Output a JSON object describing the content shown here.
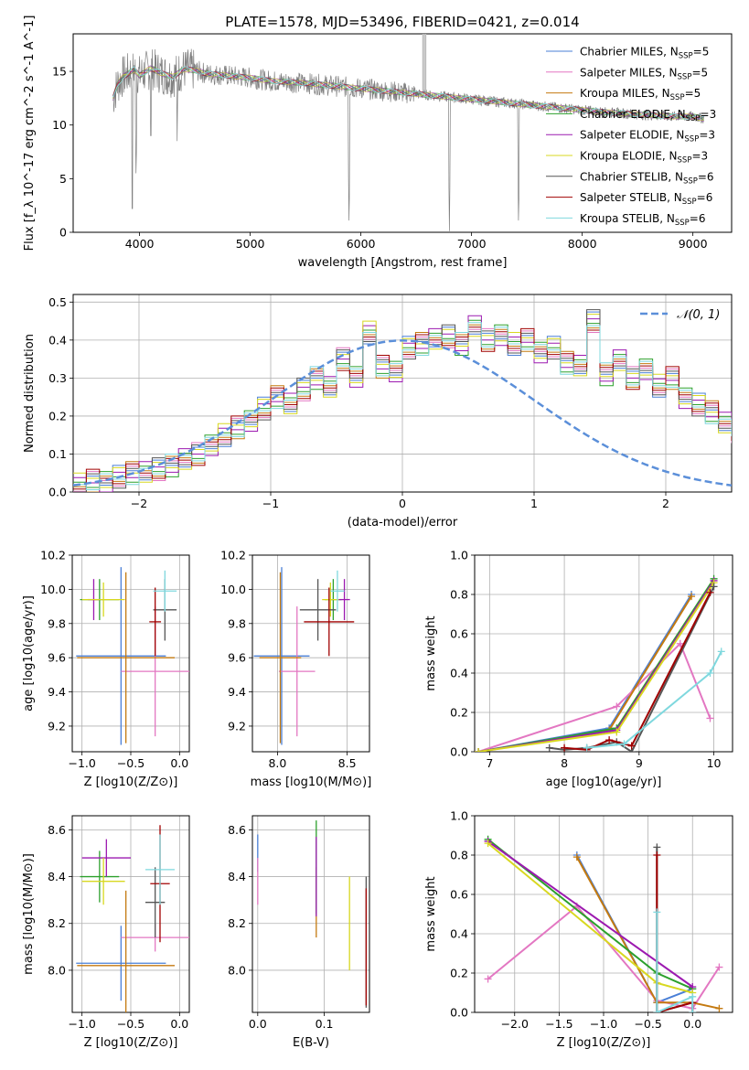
{
  "figure": {
    "title": "PLATE=1578, MJD=53496, FIBERID=0421, z=0.014"
  },
  "series_styles": [
    {
      "name": "Chabrier MILES",
      "nssp": "5",
      "color": "#4a7fd6"
    },
    {
      "name": "Salpeter MILES",
      "nssp": "5",
      "color": "#e377c2"
    },
    {
      "name": "Kroupa MILES",
      "nssp": "5",
      "color": "#c47a10"
    },
    {
      "name": "Chabrier ELODIE",
      "nssp": "3",
      "color": "#2ca02c"
    },
    {
      "name": "Salpeter ELODIE",
      "nssp": "3",
      "color": "#9c1ab0"
    },
    {
      "name": "Kroupa ELODIE",
      "nssp": "3",
      "color": "#d8d820"
    },
    {
      "name": "Chabrier STELIB",
      "nssp": "6",
      "color": "#555555"
    },
    {
      "name": "Salpeter STELIB",
      "nssp": "6",
      "color": "#a00000"
    },
    {
      "name": "Kroupa STELIB",
      "nssp": "6",
      "color": "#7fd8de"
    }
  ],
  "chart_data": [
    {
      "id": "spectrum",
      "type": "line",
      "xlabel": "wavelength [Angstrom, rest frame]",
      "ylabel": "Flux [f_λ 10^-17 erg cm^-2 s^-1 A^-1]",
      "xlim": [
        3400,
        9350
      ],
      "ylim": [
        0,
        18.5
      ],
      "xticks": [
        4000,
        5000,
        6000,
        7000,
        8000,
        9000
      ],
      "yticks": [
        0,
        5,
        10,
        15
      ],
      "legend": "top-right",
      "data_color": "#808080",
      "continuum_x": [
        3760,
        3800,
        3850,
        3900,
        3950,
        4000,
        4100,
        4200,
        4300,
        4400,
        4500,
        4600,
        4800,
        5000,
        5200,
        5500,
        5800,
        6000,
        6200,
        6500,
        6800,
        7000,
        7200,
        7500,
        7800,
        8000,
        8200,
        8500,
        8800,
        9000,
        9100
      ],
      "continuum_y": [
        12.5,
        13.8,
        14.5,
        14.8,
        15.2,
        14.6,
        15.3,
        14.8,
        14.5,
        15.2,
        15.1,
        14.8,
        14.6,
        14.4,
        14.1,
        13.9,
        13.6,
        13.4,
        13.2,
        12.9,
        12.6,
        12.4,
        12.2,
        11.9,
        11.6,
        11.4,
        11.2,
        11.0,
        10.8,
        10.8,
        10.6
      ],
      "absorption_dips": [
        {
          "x": 3934,
          "y": 0.2
        },
        {
          "x": 3969,
          "y": 4.5
        },
        {
          "x": 4102,
          "y": 7.0
        },
        {
          "x": 4340,
          "y": 8.5
        },
        {
          "x": 5893,
          "y": 0.1
        },
        {
          "x": 6800,
          "y": 0.1
        },
        {
          "x": 7425,
          "y": 0.1
        }
      ],
      "emission_spikes": [
        {
          "x": 6563,
          "y": 18.5
        },
        {
          "x": 6583,
          "y": 18.5
        }
      ]
    },
    {
      "id": "residual_hist",
      "type": "line",
      "xlabel": "(data-model)/error",
      "ylabel": "Normed distribution",
      "xlim": [
        -2.5,
        2.5
      ],
      "ylim": [
        0,
        0.52
      ],
      "xticks": [
        -2,
        -1,
        0,
        1,
        2
      ],
      "xtick_labels": [
        "−2",
        "−1",
        "0",
        "1",
        "2"
      ],
      "yticks": [
        0.0,
        0.1,
        0.2,
        0.3,
        0.4,
        0.5
      ],
      "ytick_labels": [
        "0.0",
        "0.1",
        "0.2",
        "0.3",
        "0.4",
        "0.5"
      ],
      "legend": "top-right",
      "curve_label": "𝒩(0, 1)",
      "curve_color": "#5b8fd9",
      "bins_start": -2.5,
      "bin_width": 0.1,
      "histogram": [
        0.02,
        0.03,
        0.03,
        0.04,
        0.05,
        0.05,
        0.06,
        0.07,
        0.09,
        0.1,
        0.12,
        0.15,
        0.17,
        0.19,
        0.22,
        0.25,
        0.23,
        0.27,
        0.3,
        0.28,
        0.35,
        0.3,
        0.42,
        0.33,
        0.32,
        0.38,
        0.39,
        0.4,
        0.41,
        0.39,
        0.44,
        0.4,
        0.41,
        0.39,
        0.4,
        0.37,
        0.38,
        0.34,
        0.33,
        0.45,
        0.31,
        0.35,
        0.3,
        0.32,
        0.28,
        0.3,
        0.25,
        0.23,
        0.21,
        0.18,
        0.16,
        0.14,
        0.12,
        0.1,
        0.09,
        0.08,
        0.06,
        0.05,
        0.04,
        0.03
      ]
    },
    {
      "id": "age_vs_Z",
      "type": "scatter",
      "xlabel": "Z [log10(Z/Z⊙)]",
      "ylabel": "age [log10(age/yr)]",
      "xlim": [
        -1.1,
        0.1
      ],
      "ylim": [
        9.05,
        10.2
      ],
      "xticks": [
        -1.0,
        -0.5,
        0.0
      ],
      "xtick_labels": [
        "−1.0",
        "−0.5",
        "0.0"
      ],
      "yticks": [
        9.2,
        9.4,
        9.6,
        9.8,
        10.0,
        10.2
      ],
      "ytick_labels": [
        "9.2",
        "9.4",
        "9.6",
        "9.8",
        "10.0",
        "10.2"
      ],
      "points": [
        {
          "x": -0.6,
          "y": 9.61,
          "xerr": 0.46,
          "yerr": 0.52
        },
        {
          "x": -0.25,
          "y": 9.52,
          "xerr": 0.35,
          "yerr": 0.38
        },
        {
          "x": -0.55,
          "y": 9.6,
          "xerr": 0.5,
          "yerr": 0.5
        },
        {
          "x": -0.82,
          "y": 9.94,
          "xerr": 0.2,
          "yerr": 0.12
        },
        {
          "x": -0.88,
          "y": 9.94,
          "xerr": 0.06,
          "yerr": 0.12
        },
        {
          "x": -0.78,
          "y": 9.94,
          "xerr": 0.22,
          "yerr": 0.1
        },
        {
          "x": -0.15,
          "y": 9.88,
          "xerr": 0.12,
          "yerr": 0.18
        },
        {
          "x": -0.25,
          "y": 9.81,
          "xerr": 0.06,
          "yerr": 0.2
        },
        {
          "x": -0.15,
          "y": 9.99,
          "xerr": 0.12,
          "yerr": 0.12
        }
      ]
    },
    {
      "id": "age_vs_mass",
      "type": "scatter",
      "xlabel": "mass [log10(M/M⊙)]",
      "ylabel": "",
      "xlim": [
        7.82,
        8.66
      ],
      "ylim": [
        9.05,
        10.2
      ],
      "xticks": [
        8.0,
        8.5
      ],
      "xtick_labels": [
        "8.0",
        "8.5"
      ],
      "yticks": [
        9.2,
        9.4,
        9.6,
        9.8,
        10.0,
        10.2
      ],
      "ytick_labels": [
        "9.2",
        "9.4",
        "9.6",
        "9.8",
        "10.0",
        "10.2"
      ],
      "points": [
        {
          "x": 8.03,
          "y": 9.61,
          "xerr": 0.2,
          "yerr": 0.52
        },
        {
          "x": 8.14,
          "y": 9.52,
          "xerr": 0.13,
          "yerr": 0.38
        },
        {
          "x": 8.02,
          "y": 9.6,
          "xerr": 0.15,
          "yerr": 0.5
        },
        {
          "x": 8.4,
          "y": 9.94,
          "xerr": 0.06,
          "yerr": 0.12
        },
        {
          "x": 8.48,
          "y": 9.94,
          "xerr": 0.04,
          "yerr": 0.12
        },
        {
          "x": 8.38,
          "y": 9.94,
          "xerr": 0.06,
          "yerr": 0.1
        },
        {
          "x": 8.29,
          "y": 9.88,
          "xerr": 0.13,
          "yerr": 0.18
        },
        {
          "x": 8.37,
          "y": 9.81,
          "xerr": 0.18,
          "yerr": 0.2
        },
        {
          "x": 8.43,
          "y": 9.99,
          "xerr": 0.05,
          "yerr": 0.12
        }
      ]
    },
    {
      "id": "weight_vs_age",
      "type": "line",
      "xlabel": "age [log10(age/yr)]",
      "ylabel": "mass weight",
      "xlim": [
        6.8,
        10.25
      ],
      "ylim": [
        0,
        1.0
      ],
      "xticks": [
        7,
        8,
        9,
        10
      ],
      "xtick_labels": [
        "7",
        "8",
        "9",
        "10"
      ],
      "yticks": [
        0.0,
        0.2,
        0.4,
        0.6,
        0.8,
        1.0
      ],
      "ytick_labels": [
        "0.0",
        "0.2",
        "0.4",
        "0.6",
        "0.8",
        "1.0"
      ],
      "series": [
        {
          "x": [
            6.85,
            8.6,
            9.7
          ],
          "y": [
            0.0,
            0.12,
            0.8
          ]
        },
        {
          "x": [
            6.85,
            8.7,
            9.55,
            9.95
          ],
          "y": [
            0.0,
            0.23,
            0.55,
            0.17
          ]
        },
        {
          "x": [
            6.85,
            8.6,
            9.7
          ],
          "y": [
            0.0,
            0.11,
            0.79
          ]
        },
        {
          "x": [
            6.85,
            8.7,
            10.0
          ],
          "y": [
            0.0,
            0.12,
            0.88
          ]
        },
        {
          "x": [
            6.85,
            8.7,
            10.0
          ],
          "y": [
            0.0,
            0.11,
            0.87
          ]
        },
        {
          "x": [
            6.85,
            8.7,
            10.0
          ],
          "y": [
            0.0,
            0.1,
            0.86
          ]
        },
        {
          "x": [
            7.8,
            8.0,
            8.3,
            8.7,
            8.9,
            10.0
          ],
          "y": [
            0.02,
            0.01,
            0.02,
            0.05,
            0.0,
            0.84
          ]
        },
        {
          "x": [
            8.0,
            8.3,
            8.6,
            8.9,
            9.95
          ],
          "y": [
            0.02,
            0.01,
            0.06,
            0.03,
            0.81
          ]
        },
        {
          "x": [
            8.3,
            8.8,
            9.95,
            10.1
          ],
          "y": [
            0.02,
            0.04,
            0.4,
            0.51
          ]
        }
      ]
    },
    {
      "id": "mass_vs_Z",
      "type": "scatter",
      "xlabel": "Z [log10(Z/Z⊙)]",
      "ylabel": "mass [log10(M/M⊙)]",
      "xlim": [
        -1.1,
        0.1
      ],
      "ylim": [
        7.82,
        8.66
      ],
      "xticks": [
        -1.0,
        -0.5,
        0.0
      ],
      "xtick_labels": [
        "−1.0",
        "−0.5",
        "0.0"
      ],
      "yticks": [
        8.0,
        8.2,
        8.4,
        8.6
      ],
      "ytick_labels": [
        "8.0",
        "8.2",
        "8.4",
        "8.6"
      ],
      "points": [
        {
          "x": -0.6,
          "y": 8.03,
          "xerr": 0.46,
          "yerr": 0.16
        },
        {
          "x": -0.25,
          "y": 8.14,
          "xerr": 0.35,
          "yerr": 0.06
        },
        {
          "x": -0.55,
          "y": 8.02,
          "xerr": 0.5,
          "yerr": 0.32
        },
        {
          "x": -0.82,
          "y": 8.4,
          "xerr": 0.2,
          "yerr": 0.11
        },
        {
          "x": -0.75,
          "y": 8.48,
          "xerr": 0.25,
          "yerr": 0.08
        },
        {
          "x": -0.78,
          "y": 8.38,
          "xerr": 0.22,
          "yerr": 0.1
        },
        {
          "x": -0.25,
          "y": 8.29,
          "xerr": 0.1,
          "yerr": 0.15
        },
        {
          "x": -0.2,
          "y": 8.37,
          "xerr": 0.1,
          "yerr": 0.25
        },
        {
          "x": -0.2,
          "y": 8.43,
          "xerr": 0.15,
          "yerr": 0.15
        }
      ]
    },
    {
      "id": "mass_vs_EBV",
      "type": "scatter",
      "xlabel": "E(B-V)",
      "ylabel": "",
      "xlim": [
        -0.008,
        0.168
      ],
      "ylim": [
        7.82,
        8.66
      ],
      "xticks": [
        0.0,
        0.1
      ],
      "xtick_labels": [
        "0.0",
        "0.1"
      ],
      "yticks": [
        8.0,
        8.2,
        8.4,
        8.6
      ],
      "ytick_labels": [
        "8.0",
        "8.2",
        "8.4",
        "8.6"
      ],
      "points": [
        {
          "x": 0.0,
          "y": 8.5,
          "xerr": 0,
          "yerr": 0.08
        },
        {
          "x": 0.0,
          "y": 8.38,
          "xerr": 0,
          "yerr": 0.1
        },
        {
          "x": 0.088,
          "y": 8.29,
          "xerr": 0,
          "yerr": 0.15
        },
        {
          "x": 0.088,
          "y": 8.44,
          "xerr": 0,
          "yerr": 0.2
        },
        {
          "x": 0.088,
          "y": 8.4,
          "xerr": 0,
          "yerr": 0.17
        },
        {
          "x": 0.138,
          "y": 8.2,
          "xerr": 0,
          "yerr": 0.2
        },
        {
          "x": 0.163,
          "y": 8.12,
          "xerr": 0,
          "yerr": 0.28
        },
        {
          "x": 0.163,
          "y": 8.1,
          "xerr": 0,
          "yerr": 0.25
        }
      ]
    },
    {
      "id": "weight_vs_Z",
      "type": "line",
      "xlabel": "Z [log10(Z/Z⊙)]",
      "ylabel": "mass weight",
      "xlim": [
        -2.45,
        0.45
      ],
      "ylim": [
        0,
        1.0
      ],
      "xticks": [
        -2.0,
        -1.5,
        -1.0,
        -0.5,
        0.0
      ],
      "xtick_labels": [
        "−2.0",
        "−1.5",
        "−1.0",
        "−0.5",
        "0.0"
      ],
      "yticks": [
        0.0,
        0.2,
        0.4,
        0.6,
        0.8,
        1.0
      ],
      "ytick_labels": [
        "0.0",
        "0.2",
        "0.4",
        "0.6",
        "0.8",
        "1.0"
      ],
      "series": [
        {
          "x": [
            -1.3,
            -0.4,
            0.0
          ],
          "y": [
            0.8,
            0.05,
            0.12
          ]
        },
        {
          "x": [
            -2.3,
            -1.3,
            -0.4,
            0.0,
            0.3
          ],
          "y": [
            0.17,
            0.54,
            0.06,
            0.02,
            0.23
          ]
        },
        {
          "x": [
            -1.3,
            -0.4,
            0.0,
            0.3
          ],
          "y": [
            0.79,
            0.05,
            0.05,
            0.02
          ]
        },
        {
          "x": [
            -2.3,
            -0.4,
            0.0
          ],
          "y": [
            0.88,
            0.2,
            0.12
          ]
        },
        {
          "x": [
            -2.3,
            0.0
          ],
          "y": [
            0.87,
            0.13
          ]
        },
        {
          "x": [
            -2.3,
            -0.4,
            0.0
          ],
          "y": [
            0.86,
            0.15,
            0.1
          ]
        },
        {
          "x": [
            -0.4,
            -0.4,
            0.0,
            0.0
          ],
          "y": [
            0.84,
            0.0,
            0.05,
            0.0
          ]
        },
        {
          "x": [
            -0.4,
            -0.4,
            0.0,
            0.0
          ],
          "y": [
            0.8,
            0.0,
            0.05,
            0.0
          ]
        },
        {
          "x": [
            -0.4,
            -0.4,
            0.0,
            0.0
          ],
          "y": [
            0.51,
            0.0,
            0.08,
            0.0
          ]
        }
      ]
    }
  ]
}
